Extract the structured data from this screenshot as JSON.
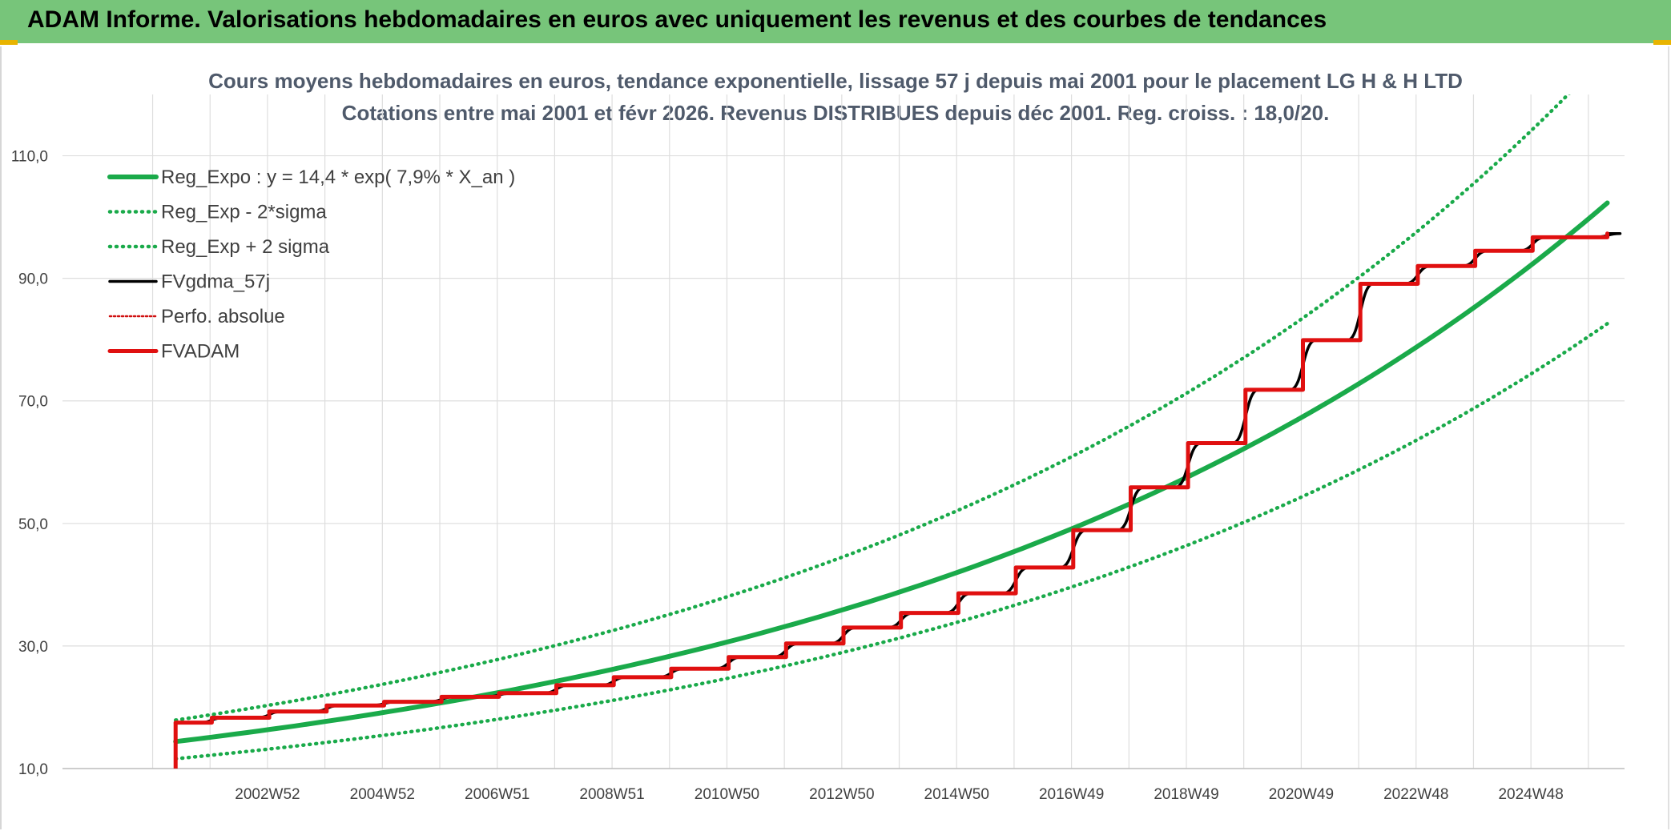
{
  "header": {
    "title": "ADAM Informe. Valorisations hebdomadaires en euros avec uniquement les revenus et des courbes de tendances"
  },
  "chart_data": {
    "type": "line",
    "title": "Cours moyens hebdomadaires en euros, tendance exponentielle, lissage 57 j depuis mai 2001 pour le placement LG H & H LTD",
    "subtitle": "Cotations entre mai 2001 et févr 2026. Revenus DISTRIBUES depuis déc 2001. Reg. croiss. : 18,0/20.",
    "xlabel": "",
    "ylabel": "",
    "ylim": [
      10,
      120
    ],
    "y_ticks": [
      "10,0",
      "30,0",
      "50,0",
      "70,0",
      "90,0",
      "110,0"
    ],
    "y_tick_values": [
      10,
      30,
      50,
      70,
      90,
      110
    ],
    "x_range": [
      1999.4,
      2026.6
    ],
    "x_tick_labels": [
      "2002W52",
      "2004W52",
      "2006W51",
      "2008W51",
      "2010W50",
      "2012W50",
      "2014W50",
      "2016W49",
      "2018W49",
      "2020W49",
      "2022W48",
      "2024W48"
    ],
    "x_tick_values": [
      2002.97,
      2004.97,
      2006.97,
      2008.97,
      2010.97,
      2012.97,
      2014.97,
      2016.97,
      2018.97,
      2020.97,
      2022.97,
      2024.97
    ],
    "grid": true,
    "legend_position": "top-left",
    "series": [
      {
        "name": "Reg_Expo : y = 14,4 * exp( 7,9% *  X_an )",
        "color": "#1aaa4a",
        "style": "solid-thick",
        "x": [
          2001.37,
          2004,
          2007,
          2010,
          2013,
          2016,
          2019,
          2022,
          2025,
          2026.3
        ],
        "values": [
          14.4,
          17.6,
          22.2,
          28.1,
          35.6,
          45.2,
          57.2,
          72.5,
          91.9,
          102.3
        ]
      },
      {
        "name": "Reg_Exp - 2*sigma",
        "color": "#1aaa4a",
        "style": "dotted",
        "x": [
          2001.37,
          2004,
          2007,
          2010,
          2013,
          2016,
          2019,
          2022,
          2025,
          2026.3
        ],
        "values": [
          11.6,
          14.2,
          17.9,
          22.7,
          28.8,
          36.5,
          46.2,
          58.5,
          74.2,
          82.6
        ]
      },
      {
        "name": "Reg_Exp + 2 sigma",
        "color": "#1aaa4a",
        "style": "dotted",
        "x": [
          2001.37,
          2004,
          2007,
          2010,
          2013,
          2016,
          2019,
          2022,
          2025,
          2026.3
        ],
        "values": [
          17.9,
          21.8,
          27.5,
          34.8,
          44.1,
          55.9,
          70.8,
          89.8,
          113.8,
          126.6
        ]
      },
      {
        "name": "FVgdma_57j",
        "color": "#000000",
        "style": "smooth-steps",
        "x": [
          2001.37,
          2002,
          2003,
          2004,
          2005,
          2006,
          2007,
          2008,
          2009,
          2010,
          2011,
          2012,
          2013,
          2014,
          2015,
          2016,
          2017,
          2018,
          2019,
          2020,
          2021,
          2022,
          2023,
          2024,
          2025,
          2026.3
        ],
        "values": [
          17.5,
          18.3,
          19.3,
          20.3,
          20.9,
          21.7,
          22.3,
          23.6,
          24.9,
          26.3,
          28.2,
          30.4,
          33.0,
          35.4,
          38.6,
          42.8,
          48.9,
          55.9,
          63.1,
          71.8,
          79.9,
          89.1,
          92.0,
          94.5,
          96.7,
          97.3
        ]
      },
      {
        "name": "Perfo. absolue",
        "color": "#d01010",
        "style": "dotted-thin",
        "x": [],
        "values": []
      },
      {
        "name": "FVADAM",
        "color": "#e01010",
        "style": "step-thick",
        "x": [
          2001.37,
          2002,
          2003,
          2004,
          2005,
          2006,
          2007,
          2008,
          2009,
          2010,
          2011,
          2012,
          2013,
          2014,
          2015,
          2016,
          2017,
          2018,
          2019,
          2020,
          2021,
          2022,
          2023,
          2024,
          2025,
          2026.3
        ],
        "values": [
          17.5,
          18.3,
          19.3,
          20.3,
          20.9,
          21.7,
          22.3,
          23.6,
          24.9,
          26.3,
          28.2,
          30.4,
          33.0,
          35.4,
          38.6,
          42.8,
          48.9,
          55.9,
          63.1,
          71.8,
          79.9,
          89.1,
          92.0,
          94.5,
          96.7,
          97.3
        ]
      }
    ]
  }
}
